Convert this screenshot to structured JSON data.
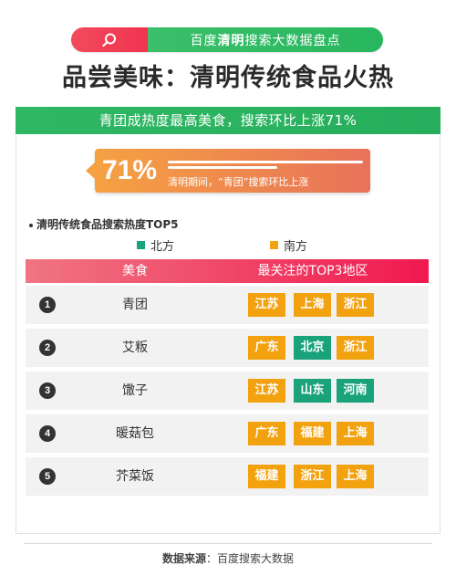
{
  "header": {
    "pill_prefix": "百度",
    "pill_highlight": "清明",
    "pill_suffix": "搜索大数据盘点",
    "title": "品尝美味：清明传统食品火热"
  },
  "banner": {
    "text": "青团成热度最高美食，搜索环比上涨71%"
  },
  "callout": {
    "percent": "71%",
    "description": "清明期间，“青团”搜索环比上涨"
  },
  "section": {
    "title": "清明传统食品搜索热度TOP5"
  },
  "legend": {
    "north": {
      "label": "北方",
      "color": "#1aa37a"
    },
    "south": {
      "label": "南方",
      "color": "#f2a10f"
    }
  },
  "table": {
    "headers": [
      "美食",
      "最关注的TOP3地区"
    ],
    "rows": [
      {
        "rank": "1",
        "food": "青团",
        "regions": [
          {
            "name": "江苏",
            "type": "south"
          },
          {
            "name": "上海",
            "type": "south"
          },
          {
            "name": "浙江",
            "type": "south"
          }
        ]
      },
      {
        "rank": "2",
        "food": "艾粄",
        "regions": [
          {
            "name": "广东",
            "type": "south"
          },
          {
            "name": "北京",
            "type": "north"
          },
          {
            "name": "浙江",
            "type": "south"
          }
        ]
      },
      {
        "rank": "3",
        "food": "馓子",
        "regions": [
          {
            "name": "江苏",
            "type": "south"
          },
          {
            "name": "山东",
            "type": "north"
          },
          {
            "name": "河南",
            "type": "north"
          }
        ]
      },
      {
        "rank": "4",
        "food": "暖菇包",
        "regions": [
          {
            "name": "广东",
            "type": "south"
          },
          {
            "name": "福建",
            "type": "south"
          },
          {
            "name": "上海",
            "type": "south"
          }
        ]
      },
      {
        "rank": "5",
        "food": "芥菜饭",
        "regions": [
          {
            "name": "福建",
            "type": "south"
          },
          {
            "name": "浙江",
            "type": "south"
          },
          {
            "name": "上海",
            "type": "south"
          }
        ]
      }
    ]
  },
  "footer": {
    "label": "数据来源",
    "source": "：百度搜索大数据"
  },
  "icons": {
    "search": "search-icon"
  }
}
